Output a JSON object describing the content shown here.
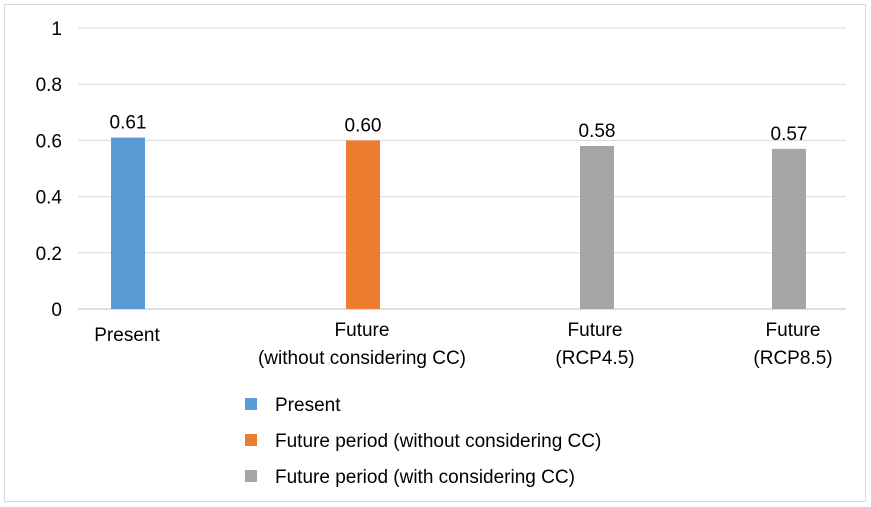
{
  "chart_data": {
    "type": "bar",
    "categories": [
      [
        "Present"
      ],
      [
        "Future",
        "(without considering CC)"
      ],
      [
        "Future",
        "(RCP4.5)"
      ],
      [
        "Future",
        "(RCP8.5)"
      ]
    ],
    "values": [
      0.61,
      0.6,
      0.58,
      0.57
    ],
    "data_labels": [
      "0.61",
      "0.60",
      "0.58",
      "0.57"
    ],
    "series_index": [
      0,
      1,
      2,
      2
    ],
    "ylim": [
      0,
      1
    ],
    "yticks": [
      0,
      0.2,
      0.4,
      0.6,
      0.8,
      1
    ],
    "ytick_labels": [
      "0",
      "0.2",
      "0.4",
      "0.6",
      "0.8",
      "1"
    ],
    "grid": true,
    "legend_position": "bottom",
    "series": [
      {
        "name": "Present",
        "color": "#5b9bd5"
      },
      {
        "name": "Future period (without considering CC)",
        "color": "#ed7d31"
      },
      {
        "name": "Future period (with considering CC)",
        "color": "#a5a5a5"
      }
    ]
  }
}
